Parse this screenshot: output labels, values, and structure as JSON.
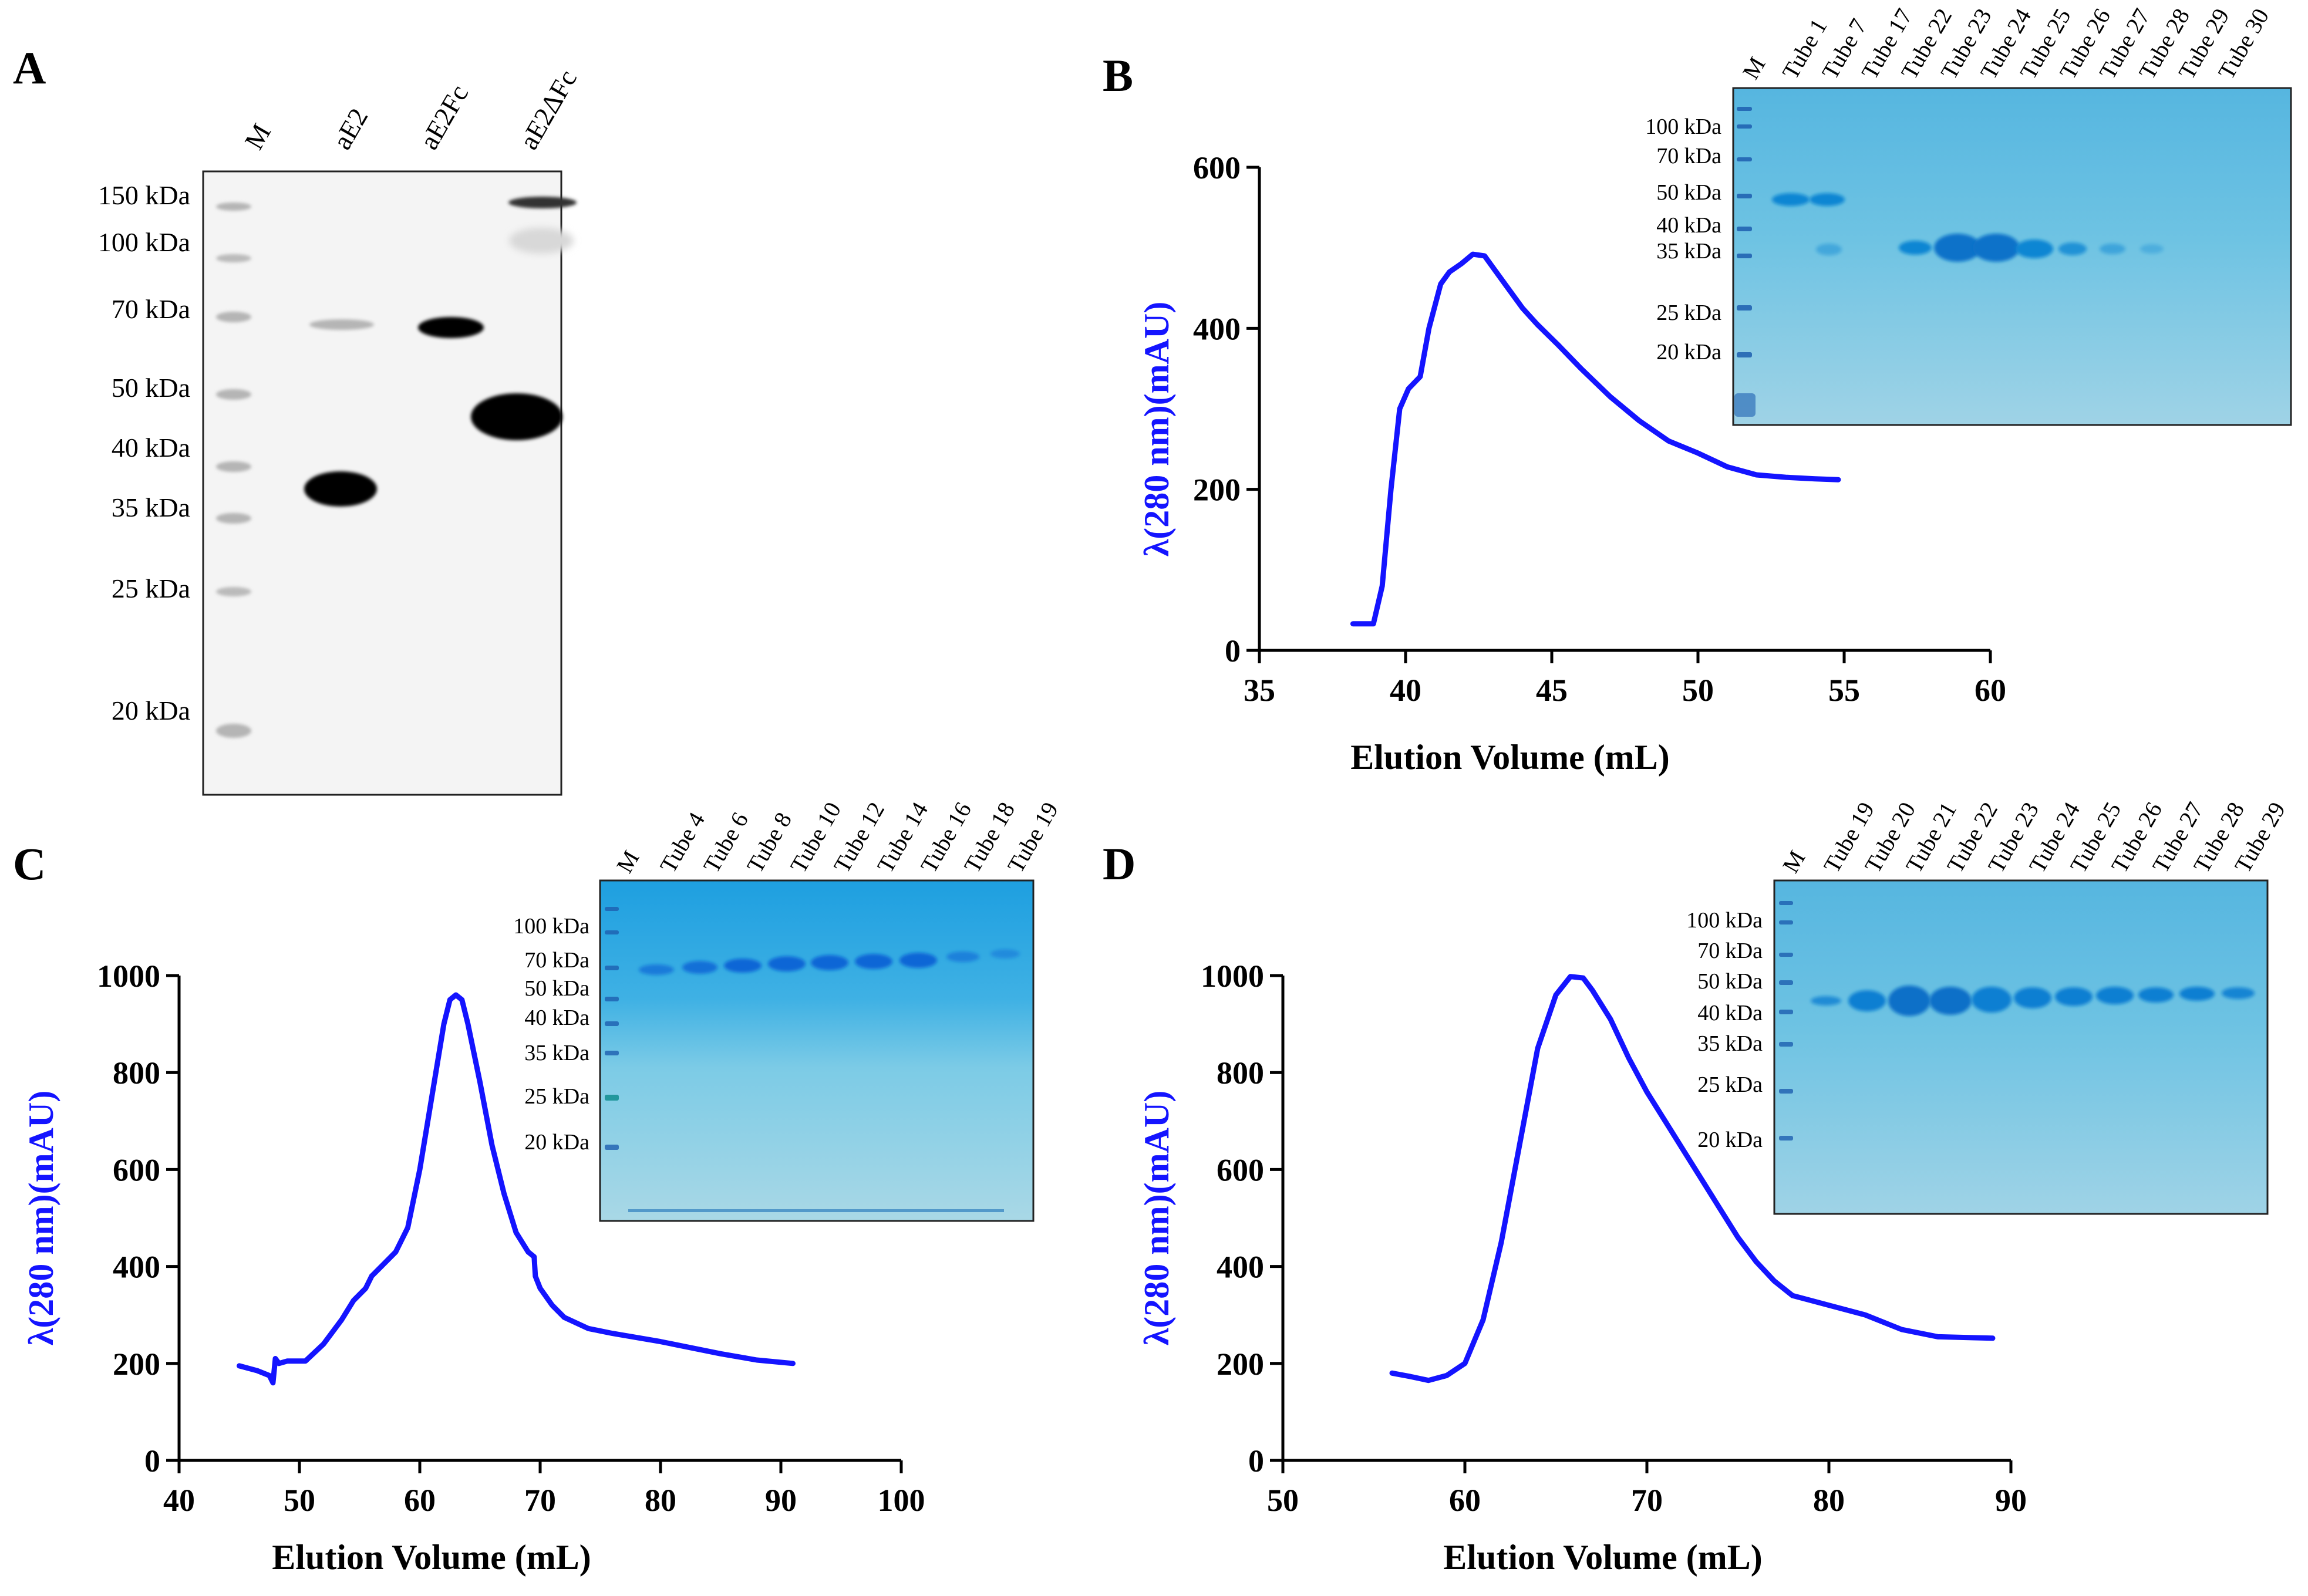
{
  "panels": {
    "A": {
      "label": "A",
      "lanes": [
        "M",
        "aE2",
        "aE2Fc",
        "aE2ΔFc"
      ],
      "markers": [
        "150 kDa",
        "100 kDa",
        "70 kDa",
        "50 kDa",
        "40 kDa",
        "35 kDa",
        "25 kDa",
        "20 kDa"
      ]
    },
    "B": {
      "label": "B",
      "gel_lanes": [
        "M",
        "Tube 1",
        "Tube 7",
        "Tube 17",
        "Tube 22",
        "Tube 23",
        "Tube 24",
        "Tube 25",
        "Tube 26",
        "Tube 27",
        "Tube 28",
        "Tube 29",
        "Tube 30"
      ],
      "gel_markers": [
        "100 kDa",
        "70 kDa",
        "50 kDa",
        "40 kDa",
        "35 kDa",
        "25 kDa",
        "20 kDa"
      ]
    },
    "C": {
      "label": "C",
      "gel_lanes": [
        "M",
        "Tube 4",
        "Tube 6",
        "Tube 8",
        "Tube 10",
        "Tube 12",
        "Tube 14",
        "Tube 16",
        "Tube 18",
        "Tube 19"
      ],
      "gel_markers": [
        "100 kDa",
        "70 kDa",
        "50 kDa",
        "40 kDa",
        "35 kDa",
        "25 kDa",
        "20 kDa"
      ]
    },
    "D": {
      "label": "D",
      "gel_lanes": [
        "M",
        "Tube 19",
        "Tube 20",
        "Tube 21",
        "Tube 22",
        "Tube 23",
        "Tube 24",
        "Tube 25",
        "Tube 26",
        "Tube 27",
        "Tube 28",
        "Tube 29"
      ],
      "gel_markers": [
        "100 kDa",
        "70 kDa",
        "50 kDa",
        "40 kDa",
        "35 kDa",
        "25 kDa",
        "20 kDa"
      ]
    }
  },
  "colors": {
    "trace": "#1414ff",
    "ylabel": "#1414ff",
    "gel": "#62bde2",
    "blot_bg": "#f4f4f4"
  },
  "chart_data": [
    {
      "panel": "B",
      "type": "line",
      "xlabel": "Elution Volume (mL)",
      "ylabel": "λ(280 nm)(mAU)",
      "xlim": [
        35,
        60
      ],
      "ylim": [
        0,
        600
      ],
      "xticks": [
        35,
        40,
        45,
        50,
        55,
        60
      ],
      "yticks": [
        0,
        200,
        400,
        600
      ],
      "x": [
        38.2,
        38.9,
        39.2,
        39.5,
        39.8,
        40.1,
        40.5,
        40.8,
        41.2,
        41.5,
        41.9,
        42.3,
        42.7,
        43.0,
        43.5,
        44.0,
        44.5,
        45.2,
        46.0,
        47.0,
        48.0,
        49.0,
        50.0,
        51.0,
        52.0,
        53.0,
        54.0,
        54.8
      ],
      "y": [
        33,
        33,
        80,
        200,
        300,
        325,
        340,
        400,
        455,
        470,
        480,
        492,
        490,
        475,
        450,
        425,
        405,
        380,
        350,
        315,
        285,
        260,
        245,
        228,
        218,
        215,
        213,
        212
      ]
    },
    {
      "panel": "C",
      "type": "line",
      "xlabel": "Elution Volume (mL)",
      "ylabel": "λ(280 nm)(mAU)",
      "xlim": [
        40,
        100
      ],
      "ylim": [
        0,
        1000
      ],
      "xticks": [
        40,
        50,
        60,
        70,
        80,
        90,
        100
      ],
      "yticks": [
        0,
        200,
        400,
        600,
        800,
        1000
      ],
      "x": [
        45,
        46.5,
        47.5,
        47.8,
        48,
        48.3,
        49,
        50.5,
        52,
        53.5,
        54.5,
        55.5,
        56,
        56.2,
        57,
        58,
        59,
        60,
        61,
        62,
        62.5,
        63,
        63.5,
        64,
        65,
        66,
        67,
        68,
        69,
        69.5,
        69.6,
        70,
        71,
        72,
        74,
        76,
        80,
        85,
        88,
        91
      ],
      "y": [
        195,
        185,
        175,
        160,
        210,
        200,
        205,
        205,
        240,
        290,
        330,
        355,
        380,
        385,
        405,
        430,
        480,
        600,
        750,
        900,
        950,
        960,
        950,
        900,
        780,
        650,
        550,
        470,
        430,
        420,
        380,
        355,
        320,
        295,
        272,
        262,
        245,
        220,
        207,
        200
      ]
    },
    {
      "panel": "D",
      "type": "line",
      "xlabel": "Elution Volume (mL)",
      "ylabel": "λ(280 nm)(mAU)",
      "xlim": [
        50,
        90
      ],
      "ylim": [
        0,
        1000
      ],
      "xticks": [
        50,
        60,
        70,
        80,
        90
      ],
      "yticks": [
        0,
        200,
        400,
        600,
        800,
        1000
      ],
      "x": [
        56,
        57,
        58,
        59,
        60,
        61,
        62,
        63,
        64,
        65,
        65.8,
        66.5,
        67,
        68,
        69,
        70,
        71,
        72,
        73,
        74,
        75,
        76,
        77,
        78,
        80,
        82,
        84,
        86,
        88,
        89
      ],
      "y": [
        180,
        173,
        165,
        175,
        200,
        290,
        450,
        650,
        850,
        960,
        998,
        995,
        970,
        910,
        830,
        760,
        700,
        640,
        580,
        520,
        460,
        410,
        370,
        340,
        320,
        300,
        270,
        255,
        253,
        252
      ]
    }
  ]
}
